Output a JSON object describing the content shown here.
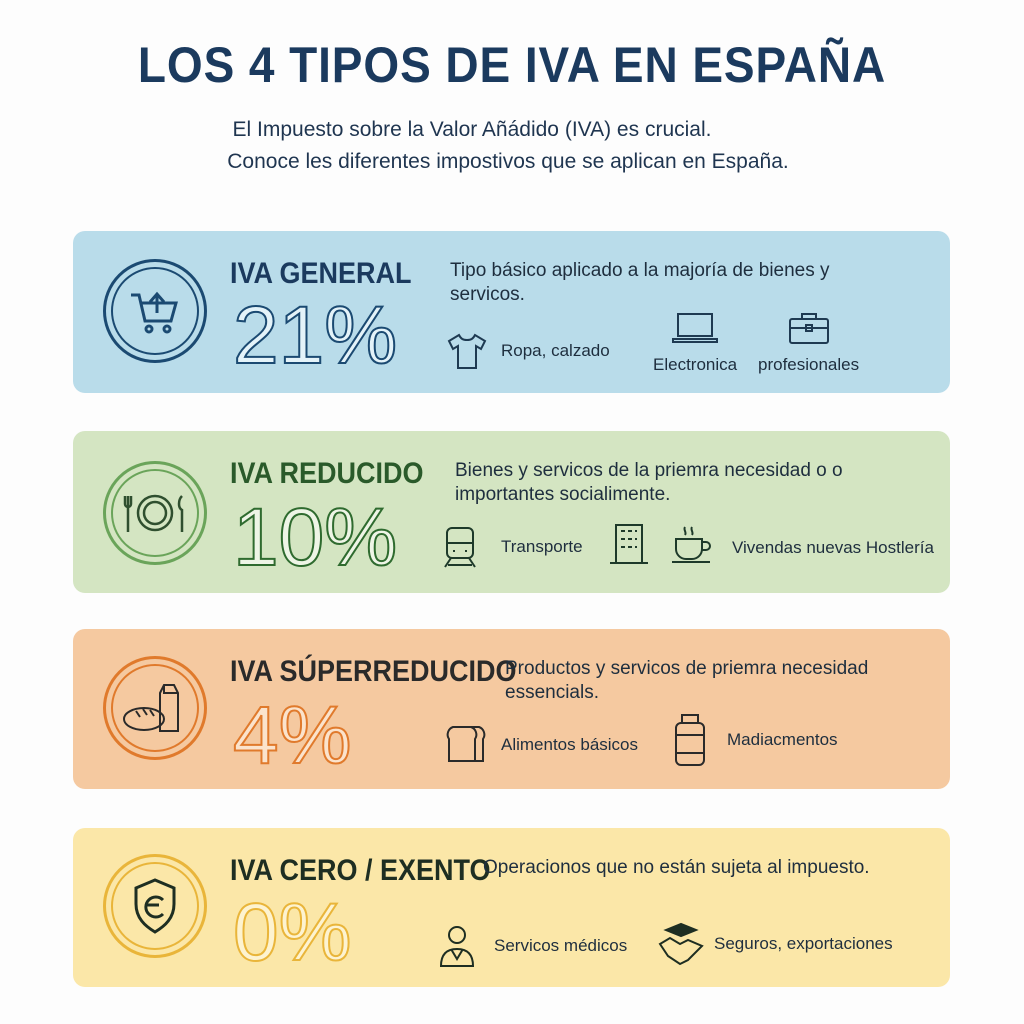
{
  "title": "LOS 4 TIPOS DE IVA EN ESPAÑA",
  "subtitle": [
    "El Impuesto sobre  la Valor Añádido (IVA) es crucial.",
    "Conoce les diferentes impostivos que se aplican en España."
  ],
  "cards": [
    {
      "name": "IVA GENERAL",
      "rate": "21%",
      "desc": "Tipo básico aplicado a la majoría de bienes y servicos.",
      "color": "#1b4a72",
      "bg": "#b9dcea",
      "icon": "shopping-cart-icon",
      "items": [
        {
          "label": "Ropa, calzado",
          "icon": "tshirt-icon"
        },
        {
          "label": "Electronica",
          "icon": "laptop-icon"
        },
        {
          "label": "profesionales",
          "icon": "briefcase-icon"
        }
      ]
    },
    {
      "name": "IVA REDUCIDO",
      "rate": "10%",
      "desc": "Bienes y servicos de la priemra necesidad o o importantes socialimente.",
      "color": "#2f6b2f",
      "bg": "#d4e5c2",
      "icon": "plate-cutlery-icon",
      "items": [
        {
          "label": "Transporte",
          "icon": "train-icon"
        },
        {
          "label": "",
          "icon": "building-icon"
        },
        {
          "label": "Vivendas nuevas Hostlería",
          "icon": "coffee-cup-icon"
        }
      ]
    },
    {
      "name": "IVA SÚPERREDUCIDO",
      "rate": "4%",
      "desc": "Productos y servicos de priemra necesidad essencials.",
      "color": "#e07a2c",
      "bg": "#f5c9a0",
      "icon": "bread-milk-icon",
      "items": [
        {
          "label": "Alimentos básicos",
          "icon": "bread-icon"
        },
        {
          "label": "Madiacmentos",
          "icon": "medicine-bottle-icon"
        }
      ]
    },
    {
      "name": "IVA CERO / EXENTO",
      "rate": "0%",
      "desc": "Operacionos que no están sujeta al impuesto.",
      "color": "#e9b53a",
      "bg": "#fbe7a8",
      "icon": "euro-shield-icon",
      "items": [
        {
          "label": "Servicos médicos",
          "icon": "doctor-icon"
        },
        {
          "label": "Seguros, exportaciones",
          "icon": "handshake-icon"
        }
      ]
    }
  ]
}
